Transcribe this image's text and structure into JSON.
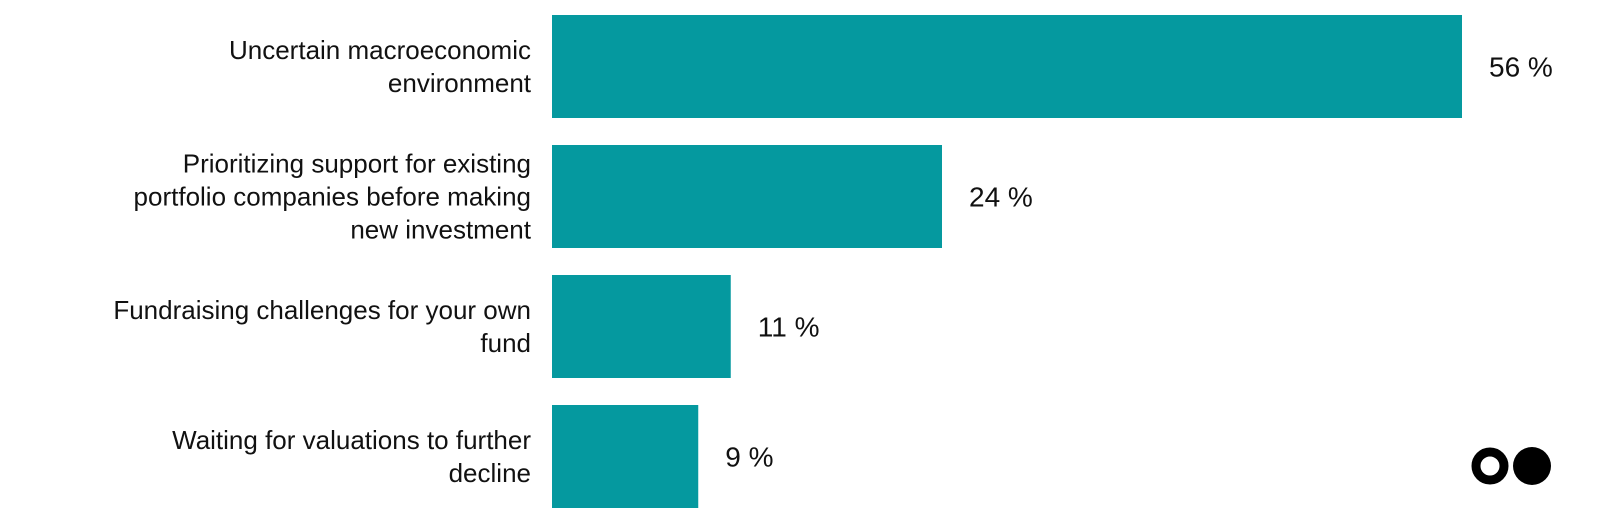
{
  "chart_data": {
    "type": "bar",
    "orientation": "horizontal",
    "categories": [
      [
        "Uncertain macroeconomic",
        "environment"
      ],
      [
        "Prioritizing support for existing",
        "portfolio companies before making",
        "new investment"
      ],
      [
        "Fundraising challenges for your own",
        "fund"
      ],
      [
        "Waiting for valuations to further",
        "decline"
      ]
    ],
    "values": [
      56,
      24,
      11,
      9
    ],
    "value_labels": [
      "56 %",
      "24 %",
      "11 %",
      "9 %"
    ],
    "unit": "%",
    "xlim": [
      0,
      56
    ],
    "grid": false,
    "bar_color": "#05999F"
  },
  "brand": {
    "logo_icon": "two-dots-logo-icon"
  }
}
